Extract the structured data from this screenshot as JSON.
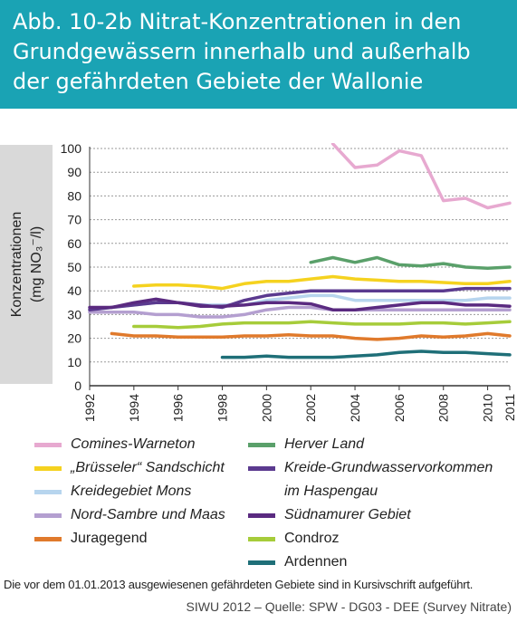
{
  "header": {
    "title": "Abb. 10-2b Nitrat-Konzentrationen in den Grundgewässern innerhalb und außerhalb der gefährdeten Gebiete der Wallonie",
    "background": "#1aa3b4"
  },
  "chart_data": {
    "type": "line",
    "ylabel_line1": "Konzentrationen",
    "ylabel_line2": "(mg NO₃⁻/l)",
    "ylim": [
      0,
      100
    ],
    "yticks": [
      0,
      10,
      20,
      30,
      40,
      50,
      60,
      70,
      80,
      90,
      100
    ],
    "xlim": [
      1992,
      2011
    ],
    "xticks": [
      1992,
      1994,
      1996,
      1998,
      2000,
      2002,
      2004,
      2006,
      2008,
      2010,
      2011
    ],
    "grid": "horizontal",
    "series": [
      {
        "name": "Comines-Warneton",
        "color": "#e7a9d0",
        "italic": true,
        "x": [
          2003,
          2004,
          2005,
          2006,
          2007,
          2008,
          2009,
          2010,
          2011
        ],
        "y": [
          102,
          92,
          93,
          99,
          97,
          78,
          79,
          75,
          77
        ]
      },
      {
        "name": "„Brüsseler“ Sandschicht",
        "color": "#f5d21f",
        "italic": true,
        "x": [
          1994,
          1995,
          1996,
          1997,
          1998,
          1999,
          2000,
          2001,
          2002,
          2003,
          2004,
          2005,
          2006,
          2007,
          2008,
          2009,
          2010,
          2011
        ],
        "y": [
          42,
          42.5,
          42.5,
          42,
          41,
          43,
          44,
          44,
          45,
          46,
          45,
          44.5,
          44,
          44,
          43.5,
          43,
          43,
          44
        ]
      },
      {
        "name": "Kreidegebiet Mons",
        "color": "#b7d5ee",
        "italic": true,
        "x": [
          1992,
          1993,
          1994,
          1995,
          1996,
          1997,
          1998,
          1999,
          2000,
          2001,
          2002,
          2003,
          2004,
          2005,
          2006,
          2007,
          2008,
          2009,
          2010,
          2011
        ],
        "y": [
          32,
          33,
          34,
          35,
          35,
          34,
          34,
          34,
          36,
          37,
          38,
          38,
          36,
          36,
          36,
          36,
          36,
          36,
          37,
          37
        ]
      },
      {
        "name": "Nord-Sambre und Maas",
        "color": "#b49fd0",
        "italic": true,
        "x": [
          1992,
          1993,
          1994,
          1995,
          1996,
          1997,
          1998,
          1999,
          2000,
          2001,
          2002,
          2003,
          2004,
          2005,
          2006,
          2007,
          2008,
          2009,
          2010,
          2011
        ],
        "y": [
          31,
          31,
          31,
          30,
          30,
          29,
          29,
          30,
          32,
          33,
          33,
          32,
          32,
          32,
          32,
          32,
          32,
          32,
          32,
          32
        ]
      },
      {
        "name": "Juragegend",
        "color": "#e07a2c",
        "italic": false,
        "x": [
          1993,
          1994,
          1995,
          1996,
          1997,
          1998,
          1999,
          2000,
          2001,
          2002,
          2003,
          2004,
          2005,
          2006,
          2007,
          2008,
          2009,
          2010,
          2011
        ],
        "y": [
          22,
          21,
          21,
          20.5,
          20.5,
          20.5,
          21,
          21,
          21.5,
          21,
          21,
          20,
          19.5,
          20,
          21,
          20.5,
          21,
          22,
          21
        ]
      },
      {
        "name": "Herver Land",
        "color": "#5aa06a",
        "italic": true,
        "x": [
          2002,
          2003,
          2004,
          2005,
          2006,
          2007,
          2008,
          2009,
          2010,
          2011
        ],
        "y": [
          52,
          54,
          52,
          54,
          51,
          50.5,
          51.5,
          50,
          49.5,
          50
        ]
      },
      {
        "name": "Kreide-Grundwasservorkommen im Haspengau",
        "name_line1": "Kreide-Grundwasservorkommen",
        "name_line2": "im Haspengau",
        "color": "#5b3a8f",
        "italic": true,
        "x": [
          1992,
          1993,
          1994,
          1995,
          1996,
          1997,
          1998,
          1999,
          2000,
          2001,
          2002,
          2003,
          2004,
          2005,
          2006,
          2007,
          2008,
          2009,
          2010,
          2011
        ],
        "y": [
          32,
          33,
          34,
          35,
          35,
          34,
          33,
          36,
          38,
          39,
          40,
          40,
          40,
          40,
          40,
          40,
          40,
          41,
          41,
          41
        ]
      },
      {
        "name": "Südnamurer Gebiet",
        "color": "#5a2a80",
        "italic": true,
        "x": [
          1992,
          1993,
          1994,
          1995,
          1996,
          1997,
          1998,
          1999,
          2000,
          2001,
          2002,
          2003,
          2004,
          2005,
          2006,
          2007,
          2008,
          2009,
          2010,
          2011
        ],
        "y": [
          33,
          33,
          35,
          36.5,
          35,
          33.5,
          33.5,
          34,
          35,
          35,
          34.5,
          32,
          32,
          33,
          34,
          35,
          35,
          34,
          34,
          33.5
        ]
      },
      {
        "name": "Condroz",
        "color": "#a6cc3a",
        "italic": false,
        "x": [
          1994,
          1995,
          1996,
          1997,
          1998,
          1999,
          2000,
          2001,
          2002,
          2003,
          2004,
          2005,
          2006,
          2007,
          2008,
          2009,
          2010,
          2011
        ],
        "y": [
          25,
          25,
          24.5,
          25,
          26,
          26.5,
          26.5,
          26.5,
          27,
          26.5,
          26,
          26,
          26,
          26.5,
          26.5,
          26,
          26.5,
          27
        ]
      },
      {
        "name": "Ardennen",
        "color": "#1f6f78",
        "italic": false,
        "x": [
          1998,
          1999,
          2000,
          2001,
          2002,
          2003,
          2004,
          2005,
          2006,
          2007,
          2008,
          2009,
          2010,
          2011
        ],
        "y": [
          12,
          12,
          12.5,
          12,
          12,
          12,
          12.5,
          13,
          14,
          14.5,
          14,
          14,
          13.5,
          13
        ]
      }
    ]
  },
  "footnote": "Die vor dem 01.01.2013 ausgewiesenen gefährdeten Gebiete sind in Kursivschrift aufgeführt.",
  "source": "SIWU 2012 – Quelle: SPW - DG03 - DEE (Survey Nitrate)"
}
